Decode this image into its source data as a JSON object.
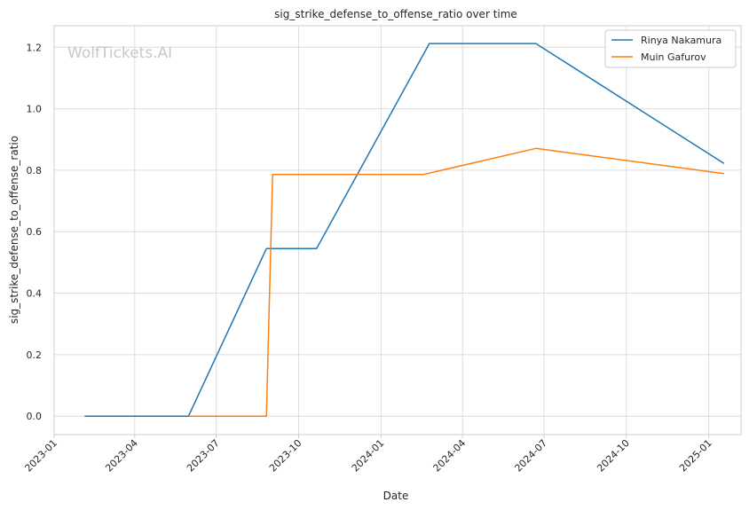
{
  "watermark": "WolfTickets.AI",
  "chart_data": {
    "type": "line",
    "title": "sig_strike_defense_to_offense_ratio over time",
    "xlabel": "Date",
    "ylabel": "sig_strike_defense_to_offense_ratio",
    "xlim": [
      "2023-01-01",
      "2025-02-06"
    ],
    "ylim": [
      -0.06,
      1.27
    ],
    "x_ticks": [
      "2023-01",
      "2023-04",
      "2023-07",
      "2023-10",
      "2024-01",
      "2024-04",
      "2024-07",
      "2024-10",
      "2025-01"
    ],
    "y_ticks": [
      "0.0",
      "0.2",
      "0.4",
      "0.6",
      "0.8",
      "1.0",
      "1.2"
    ],
    "grid": true,
    "legend_position": "top-right",
    "series": [
      {
        "name": "Rinya Nakamura",
        "color": "#1f77b4",
        "points": [
          {
            "x": "2023-02-04",
            "y": 0.0
          },
          {
            "x": "2023-05-31",
            "y": 0.0
          },
          {
            "x": "2023-08-26",
            "y": 0.545
          },
          {
            "x": "2023-10-21",
            "y": 0.545
          },
          {
            "x": "2024-02-24",
            "y": 1.212
          },
          {
            "x": "2024-06-22",
            "y": 1.212
          },
          {
            "x": "2025-01-18",
            "y": 0.822
          }
        ]
      },
      {
        "name": "Muin Gafurov",
        "color": "#ff7f0e",
        "points": [
          {
            "x": "2023-05-31",
            "y": 0.0
          },
          {
            "x": "2023-08-26",
            "y": 0.0
          },
          {
            "x": "2023-09-02",
            "y": 0.786
          },
          {
            "x": "2024-02-17",
            "y": 0.786
          },
          {
            "x": "2024-06-22",
            "y": 0.871
          },
          {
            "x": "2025-01-18",
            "y": 0.789
          }
        ]
      }
    ]
  }
}
